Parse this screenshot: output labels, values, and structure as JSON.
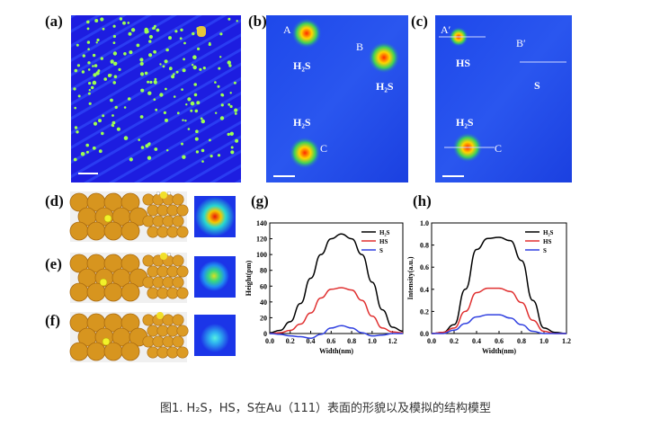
{
  "panels": {
    "a": {
      "label": "(a)"
    },
    "b": {
      "label": "(b)",
      "annotations": {
        "A": "A",
        "B": "B",
        "C": "C",
        "h2s_1": "H₂S",
        "h2s_2": "H₂S",
        "h2s_3": "H₂S"
      }
    },
    "c": {
      "label": "(c)",
      "annotations": {
        "A": "A′",
        "B": "B′",
        "C": "C",
        "hs": "HS",
        "s": "S",
        "h2s": "H₂S"
      }
    },
    "d": {
      "label": "(d)"
    },
    "e": {
      "label": "(e)"
    },
    "f": {
      "label": "(f)"
    }
  },
  "chart_data": [
    {
      "type": "line",
      "panel_label": "(g)",
      "xlabel": "Width(nm)",
      "ylabel": "Height(pm)",
      "xlim": [
        0,
        1.3
      ],
      "ylim": [
        0,
        140
      ],
      "xticks": [
        "0.0",
        "0.2",
        "0.4",
        "0.6",
        "0.8",
        "1.0",
        "1.2"
      ],
      "yticks": [
        "0",
        "20",
        "40",
        "60",
        "80",
        "100",
        "120",
        "140"
      ],
      "legend": [
        "H₂S",
        "HS",
        "S"
      ],
      "colors": [
        "#000000",
        "#e03030",
        "#3040e0"
      ],
      "series": [
        {
          "name": "H₂S",
          "x": [
            0,
            0.1,
            0.2,
            0.3,
            0.4,
            0.5,
            0.6,
            0.7,
            0.8,
            0.9,
            1.0,
            1.1,
            1.2,
            1.3
          ],
          "values": [
            1,
            4,
            15,
            38,
            70,
            100,
            120,
            126,
            120,
            100,
            65,
            30,
            8,
            3
          ]
        },
        {
          "name": "HS",
          "x": [
            0,
            0.1,
            0.2,
            0.3,
            0.4,
            0.5,
            0.6,
            0.7,
            0.8,
            0.9,
            1.0,
            1.1,
            1.2,
            1.3
          ],
          "values": [
            0,
            1,
            4,
            12,
            26,
            45,
            56,
            58,
            55,
            42,
            22,
            7,
            2,
            1
          ]
        },
        {
          "name": "S",
          "x": [
            0,
            0.1,
            0.2,
            0.3,
            0.4,
            0.5,
            0.6,
            0.7,
            0.8,
            0.9,
            1.0,
            1.1,
            1.2,
            1.3
          ],
          "values": [
            0,
            -1,
            -3,
            -4,
            -6,
            -1,
            7,
            10,
            7,
            1,
            -3,
            -2,
            0,
            0
          ]
        }
      ]
    },
    {
      "type": "line",
      "panel_label": "(h)",
      "xlabel": "Width(nm)",
      "ylabel": "Intensity(a.u.)",
      "xlim": [
        0,
        1.2
      ],
      "ylim": [
        0,
        1.0
      ],
      "xticks": [
        "0.0",
        "0.2",
        "0.4",
        "0.6",
        "0.8",
        "1.0",
        "1.2"
      ],
      "yticks": [
        "0.0",
        "0.2",
        "0.4",
        "0.6",
        "0.8",
        "1.0"
      ],
      "legend": [
        "H₂S",
        "HS",
        "S"
      ],
      "colors": [
        "#000000",
        "#e03030",
        "#3040e0"
      ],
      "series": [
        {
          "name": "H₂S",
          "x": [
            0,
            0.1,
            0.2,
            0.3,
            0.4,
            0.5,
            0.6,
            0.7,
            0.8,
            0.9,
            1.0,
            1.1,
            1.2
          ],
          "values": [
            0,
            0.01,
            0.08,
            0.4,
            0.76,
            0.86,
            0.87,
            0.84,
            0.66,
            0.3,
            0.05,
            0.01,
            0
          ]
        },
        {
          "name": "HS",
          "x": [
            0,
            0.1,
            0.2,
            0.3,
            0.4,
            0.5,
            0.6,
            0.7,
            0.8,
            0.9,
            1.0,
            1.1,
            1.2
          ],
          "values": [
            0,
            0.01,
            0.05,
            0.2,
            0.37,
            0.41,
            0.41,
            0.38,
            0.28,
            0.12,
            0.02,
            0,
            0
          ]
        },
        {
          "name": "S",
          "x": [
            0,
            0.1,
            0.2,
            0.3,
            0.4,
            0.5,
            0.6,
            0.7,
            0.8,
            0.9,
            1.0,
            1.1,
            1.2
          ],
          "values": [
            0,
            0,
            0.03,
            0.09,
            0.15,
            0.17,
            0.17,
            0.14,
            0.08,
            0.02,
            0,
            0,
            0
          ]
        }
      ]
    }
  ],
  "caption": {
    "text": "图1. H₂S，HS，S在Au（111）表面的形貌以及模拟的结构模型"
  }
}
